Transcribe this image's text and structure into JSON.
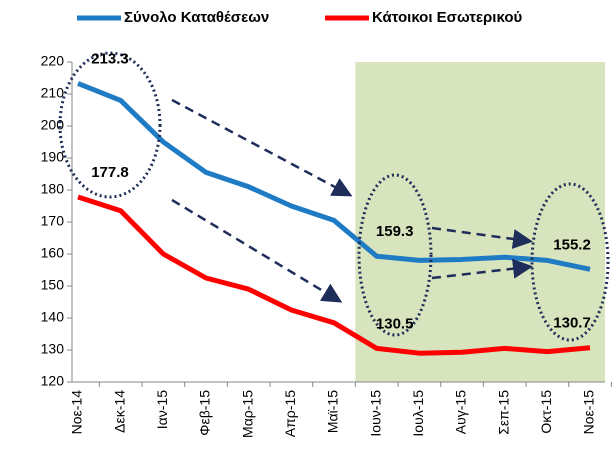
{
  "chart_data": {
    "type": "line",
    "categories": [
      "Νοε-14",
      "Δεκ-14",
      "Ιαν-15",
      "Φεβ-15",
      "Μαρ-15",
      "Απρ-15",
      "Μαϊ-15",
      "Ιουν-15",
      "Ιουλ-15",
      "Αυγ-15",
      "Σεπ-15",
      "Οκτ-15",
      "Νοε-15"
    ],
    "series": [
      {
        "name": "Σύνολο Καταθέσεων",
        "color": "#1f7bc4",
        "values": [
          213.3,
          208,
          195,
          185.5,
          181,
          175,
          170.5,
          159.3,
          158,
          158.3,
          159,
          158,
          155.2
        ]
      },
      {
        "name": "Κάτοικοι Εσωτερικού",
        "color": "#ff0000",
        "values": [
          177.8,
          173.5,
          160,
          152.5,
          149,
          142.5,
          138.5,
          130.5,
          129,
          129.3,
          130.5,
          129.5,
          130.7
        ]
      }
    ],
    "labeled_points": [
      0,
      7,
      12
    ],
    "highlight_start": "Ιουν-15",
    "highlight_color": "#d7e4bd",
    "ylim": [
      120,
      220
    ],
    "yticks": [
      120,
      130,
      140,
      150,
      160,
      170,
      180,
      190,
      200,
      210,
      220
    ],
    "legend": "top"
  }
}
